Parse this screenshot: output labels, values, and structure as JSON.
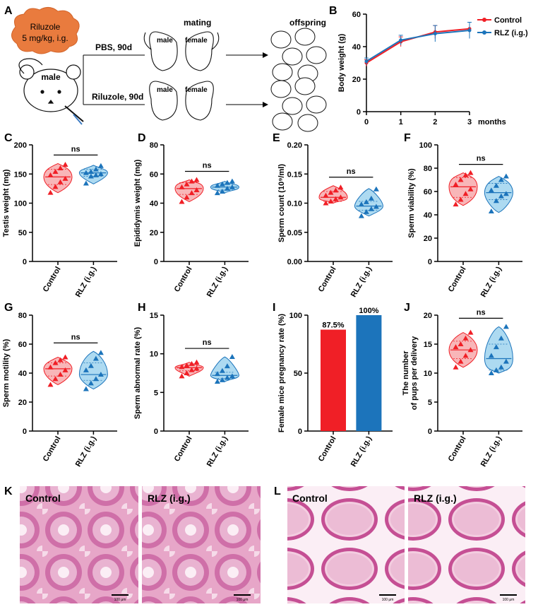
{
  "colors": {
    "control": "#f01f26",
    "rlz": "#1c74bb",
    "control_fill": "#f7a9ab",
    "rlz_fill": "#9fd3ee",
    "tissue_bg": "#f2c9dd",
    "tissue_dark": "#c45c9a"
  },
  "panel_letters": {
    "A": "A",
    "B": "B",
    "C": "C",
    "D": "D",
    "E": "E",
    "F": "F",
    "G": "G",
    "H": "H",
    "I": "I",
    "J": "J",
    "K": "K",
    "L": "L"
  },
  "schematic": {
    "drug_label_line1": "Riluzole",
    "drug_label_line2": "5 mg/kg, i.g.",
    "mouse_label": "male",
    "top_arm": "PBS, 90d",
    "bottom_arm": "Riluzole, 90d",
    "mating_title": "mating",
    "offspring_title": "offspring",
    "male": "male",
    "female": "female"
  },
  "common": {
    "ns": "ns",
    "x_labels": [
      "Control",
      "RLZ (i.g.)"
    ]
  },
  "chart_data": [
    {
      "panel": "B",
      "type": "line",
      "ylabel": "Body weight (g)",
      "x_unit": "months",
      "x": [
        0,
        1,
        2,
        3
      ],
      "ylim": [
        0,
        60
      ],
      "yticks": [
        0,
        20,
        40,
        60
      ],
      "series": [
        {
          "name": "Control",
          "values": [
            30,
            43,
            49,
            51
          ],
          "err": [
            2,
            3,
            4,
            4
          ]
        },
        {
          "name": "RLZ (i.g.)",
          "values": [
            31,
            44,
            48,
            50
          ],
          "err": [
            2,
            3,
            5,
            5
          ]
        }
      ]
    },
    {
      "panel": "C",
      "type": "violin",
      "ylabel": "Testis weight (mg)",
      "ylim": [
        0,
        200
      ],
      "yticks": [
        0,
        50,
        100,
        150,
        200
      ],
      "groups": [
        {
          "name": "Control",
          "median": 145,
          "q1": 132,
          "q3": 158,
          "min": 118,
          "max": 168,
          "points": [
            118,
            128,
            136,
            142,
            148,
            154,
            160,
            166
          ]
        },
        {
          "name": "RLZ (i.g.)",
          "median": 152,
          "q1": 146,
          "q3": 158,
          "min": 133,
          "max": 165,
          "points": [
            134,
            146,
            148,
            150,
            152,
            154,
            158,
            164
          ]
        }
      ]
    },
    {
      "panel": "D",
      "type": "violin",
      "ylabel": "Epididymis weight (mg)",
      "ylim": [
        0,
        80
      ],
      "yticks": [
        0,
        20,
        40,
        60,
        80
      ],
      "groups": [
        {
          "name": "Control",
          "median": 50,
          "q1": 46,
          "q3": 54,
          "min": 41,
          "max": 56,
          "points": [
            41,
            44,
            47,
            49,
            51,
            53,
            55,
            56
          ]
        },
        {
          "name": "RLZ (i.g.)",
          "median": 51,
          "q1": 49,
          "q3": 53,
          "min": 47,
          "max": 55,
          "points": [
            47,
            48,
            50,
            51,
            52,
            53,
            54,
            55
          ]
        }
      ]
    },
    {
      "panel": "E",
      "type": "violin",
      "ylabel": "Sperm count (10⁹/ml)",
      "ylim": [
        0,
        0.2
      ],
      "yticks": [
        0,
        0.05,
        0.1,
        0.15,
        0.2
      ],
      "ytick_labels": [
        "0.00",
        "0.05",
        "0.10",
        "0.15",
        "0.20"
      ],
      "groups": [
        {
          "name": "Control",
          "median": 0.11,
          "q1": 0.103,
          "q3": 0.12,
          "min": 0.1,
          "max": 0.13,
          "points": [
            0.1,
            0.103,
            0.107,
            0.11,
            0.113,
            0.118,
            0.122,
            0.127
          ]
        },
        {
          "name": "RLZ (i.g.)",
          "median": 0.095,
          "q1": 0.088,
          "q3": 0.103,
          "min": 0.078,
          "max": 0.125,
          "points": [
            0.078,
            0.085,
            0.09,
            0.094,
            0.098,
            0.102,
            0.108,
            0.124
          ]
        }
      ]
    },
    {
      "panel": "F",
      "type": "violin",
      "ylabel": "Sperm viability (%)",
      "ylim": [
        0,
        100
      ],
      "yticks": [
        0,
        20,
        40,
        60,
        80,
        100
      ],
      "groups": [
        {
          "name": "Control",
          "median": 64,
          "q1": 55,
          "q3": 72,
          "min": 48,
          "max": 76,
          "points": [
            49,
            53,
            58,
            62,
            66,
            70,
            74,
            76
          ]
        },
        {
          "name": "RLZ (i.g.)",
          "median": 59,
          "q1": 53,
          "q3": 67,
          "min": 42,
          "max": 73,
          "points": [
            43,
            52,
            56,
            58,
            61,
            65,
            70,
            73
          ]
        }
      ]
    },
    {
      "panel": "G",
      "type": "violin",
      "ylabel": "Sperm motility (%)",
      "ylim": [
        0,
        80
      ],
      "yticks": [
        0,
        20,
        40,
        60,
        80
      ],
      "groups": [
        {
          "name": "Control",
          "median": 43,
          "q1": 38,
          "q3": 47,
          "min": 32,
          "max": 51,
          "points": [
            32,
            36,
            39,
            42,
            44,
            47,
            49,
            51
          ]
        },
        {
          "name": "RLZ (i.g.)",
          "median": 39,
          "q1": 35,
          "q3": 47,
          "min": 29,
          "max": 55,
          "points": [
            29,
            33,
            36,
            39,
            42,
            45,
            50,
            54
          ]
        }
      ]
    },
    {
      "panel": "H",
      "type": "violin",
      "ylabel": "Sperm abnormal rate (%)",
      "ylim": [
        0,
        15
      ],
      "yticks": [
        0,
        5,
        10,
        15
      ],
      "groups": [
        {
          "name": "Control",
          "median": 8.2,
          "q1": 7.8,
          "q3": 8.5,
          "min": 7.1,
          "max": 8.9,
          "points": [
            7.1,
            7.5,
            7.9,
            8.1,
            8.3,
            8.5,
            8.7,
            8.9
          ]
        },
        {
          "name": "RLZ (i.g.)",
          "median": 7.2,
          "q1": 6.8,
          "q3": 7.6,
          "min": 6.4,
          "max": 9.6,
          "points": [
            6.4,
            6.6,
            6.9,
            7.1,
            7.4,
            7.8,
            8.4,
            9.6
          ]
        }
      ]
    },
    {
      "panel": "I",
      "type": "bar",
      "ylabel": "Female mice pregnancy rate (%)",
      "ylim": [
        0,
        100
      ],
      "yticks": [
        0,
        50,
        100
      ],
      "categories": [
        "Control",
        "RLZ (i.g.)"
      ],
      "values": [
        87.5,
        100
      ],
      "data_labels": [
        "87.5%",
        "100%"
      ]
    },
    {
      "panel": "J",
      "type": "violin",
      "ylabel_line1": "The number",
      "ylabel_line2": "of pups per delivery",
      "ylim": [
        0,
        20
      ],
      "yticks": [
        0,
        5,
        10,
        15,
        20
      ],
      "groups": [
        {
          "name": "Control",
          "median": 14,
          "q1": 12.5,
          "q3": 15.5,
          "min": 11,
          "max": 17,
          "points": [
            11,
            12,
            13,
            14,
            14.5,
            15,
            16,
            17
          ]
        },
        {
          "name": "RLZ (i.g.)",
          "median": 12.5,
          "q1": 10.5,
          "q3": 15,
          "min": 10,
          "max": 18,
          "points": [
            10,
            10.5,
            11,
            12,
            13,
            14.5,
            16,
            18
          ]
        }
      ]
    }
  ],
  "histology": {
    "K_left": "Control",
    "K_right": "RLZ (i.g.)",
    "L_left": "Control",
    "L_right": "RLZ (i.g.)",
    "scale_label": "100 μm"
  }
}
